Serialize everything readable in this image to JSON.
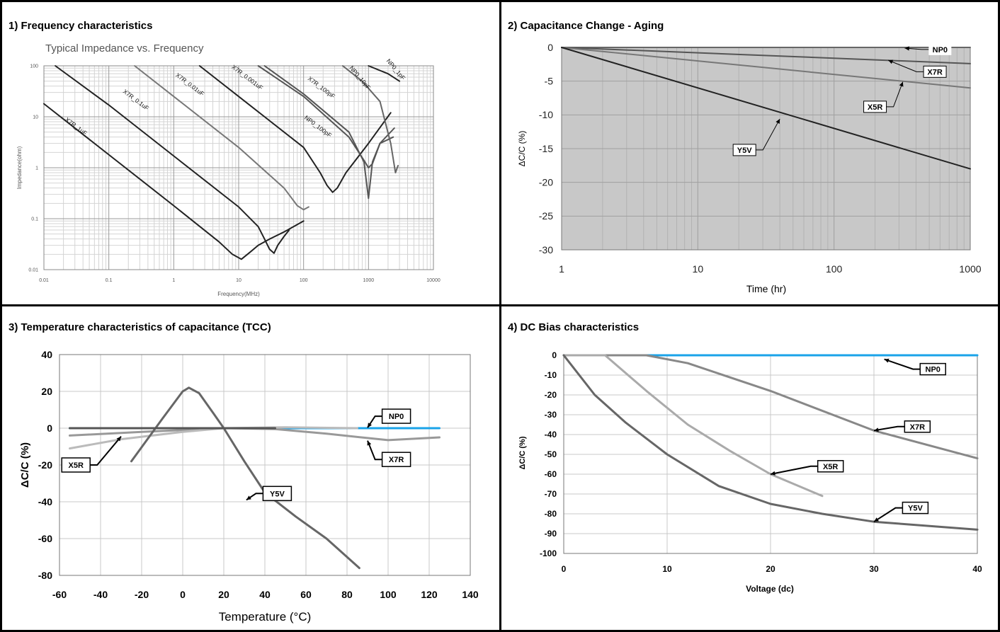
{
  "panels": {
    "p1": {
      "title": "1) Frequency characteristics"
    },
    "p2": {
      "title": "2) Capacitance Change - Aging"
    },
    "p3": {
      "title": "3) Temperature characteristics of capacitance (TCC)"
    },
    "p4": {
      "title": "4) DC Bias characteristics"
    }
  },
  "chart_data": [
    {
      "id": "freq",
      "type": "line",
      "title": "Typical Impedance vs. Frequency",
      "xlabel": "Frequency(MHz)",
      "ylabel": "Impedance(ohm)",
      "xscale": "log",
      "yscale": "log",
      "xlim": [
        0.01,
        10000
      ],
      "ylim": [
        0.01,
        100
      ],
      "xticks": [
        "0.01",
        "0.1",
        "1",
        "10",
        "100",
        "1000",
        "10000"
      ],
      "yticks": [
        "0.01",
        "0.1",
        "1",
        "10",
        "100"
      ],
      "grid": true,
      "series": [
        {
          "name": "X7R_1uF",
          "label_at": [
            0.03,
            6
          ],
          "label_angle": 37,
          "color": "#222222",
          "points": [
            [
              0.01,
              18
            ],
            [
              0.1,
              1.8
            ],
            [
              1,
              0.18
            ],
            [
              5,
              0.035
            ],
            [
              8,
              0.02
            ],
            [
              11,
              0.016
            ],
            [
              15,
              0.022
            ],
            [
              20,
              0.03
            ],
            [
              30,
              0.04
            ],
            [
              50,
              0.055
            ],
            [
              100,
              0.09
            ]
          ]
        },
        {
          "name": "X7R_0.1uF",
          "label_at": [
            0.25,
            20
          ],
          "label_angle": 37,
          "color": "#222222",
          "points": [
            [
              0.015,
              100
            ],
            [
              0.1,
              17
            ],
            [
              1,
              1.7
            ],
            [
              10,
              0.17
            ],
            [
              20,
              0.07
            ],
            [
              25,
              0.04
            ],
            [
              30,
              0.025
            ],
            [
              35,
              0.021
            ],
            [
              40,
              0.03
            ],
            [
              50,
              0.045
            ],
            [
              60,
              0.06
            ]
          ]
        },
        {
          "name": "X7R_0.01uF",
          "label_at": [
            1.7,
            40
          ],
          "label_angle": 37,
          "color": "#777777",
          "points": [
            [
              0.25,
              100
            ],
            [
              1,
              25
            ],
            [
              10,
              2.5
            ],
            [
              50,
              0.4
            ],
            [
              80,
              0.18
            ],
            [
              100,
              0.15
            ],
            [
              120,
              0.17
            ]
          ]
        },
        {
          "name": "X7R_0.001uF",
          "label_at": [
            13,
            55
          ],
          "label_angle": 37,
          "color": "#222222",
          "points": [
            [
              2.5,
              100
            ],
            [
              10,
              25
            ],
            [
              100,
              2.5
            ],
            [
              180,
              0.8
            ],
            [
              230,
              0.45
            ],
            [
              280,
              0.33
            ],
            [
              330,
              0.4
            ],
            [
              450,
              0.8
            ],
            [
              1000,
              3
            ],
            [
              2200,
              12
            ]
          ]
        },
        {
          "name": "X7R_100pF",
          "label_at": [
            180,
            35
          ],
          "label_angle": 37,
          "color": "#555555",
          "points": [
            [
              20,
              100
            ],
            [
              100,
              25
            ],
            [
              500,
              4
            ],
            [
              850,
              1.4
            ],
            [
              1000,
              1.0
            ],
            [
              1150,
              1.2
            ],
            [
              1500,
              3
            ],
            [
              2500,
              6
            ]
          ]
        },
        {
          "name": "NP0_100pF",
          "label_at": [
            160,
            6
          ],
          "label_angle": 37,
          "color": "#555555",
          "points": [
            [
              25,
              100
            ],
            [
              100,
              28
            ],
            [
              500,
              5
            ],
            [
              850,
              1.3
            ],
            [
              1000,
              0.25
            ],
            [
              1150,
              1.3
            ],
            [
              1500,
              3
            ],
            [
              2400,
              4
            ]
          ]
        },
        {
          "name": "NP0_10pF",
          "label_at": [
            700,
            55
          ],
          "label_angle": 50,
          "color": "#666666",
          "points": [
            [
              400,
              100
            ],
            [
              800,
              50
            ],
            [
              1500,
              20
            ],
            [
              2200,
              3
            ],
            [
              2600,
              0.8
            ],
            [
              2850,
              1.1
            ]
          ]
        },
        {
          "name": "NP0_1pF",
          "label_at": [
            2500,
            80
          ],
          "label_angle": 50,
          "color": "#222222",
          "points": [
            [
              1000,
              100
            ],
            [
              2000,
              70
            ],
            [
              3000,
              50
            ]
          ]
        }
      ]
    },
    {
      "id": "aging",
      "type": "line",
      "xlabel": "Time (hr)",
      "ylabel": "ΔC/C (%)",
      "xscale": "log",
      "xlim": [
        1,
        1000
      ],
      "ylim": [
        -30,
        0
      ],
      "xticks": [
        "1",
        "10",
        "100",
        "1000"
      ],
      "yticks": [
        "0",
        "-5",
        "-10",
        "-15",
        "-20",
        "-25",
        "-30"
      ],
      "grid": true,
      "series": [
        {
          "name": "NP0",
          "color": "#666666",
          "points": [
            [
              1,
              0
            ],
            [
              1000,
              0
            ]
          ]
        },
        {
          "name": "X7R",
          "color": "#555555",
          "points": [
            [
              1,
              0
            ],
            [
              1000,
              -2.4
            ]
          ]
        },
        {
          "name": "X5R",
          "color": "#777777",
          "points": [
            [
              1,
              0
            ],
            [
              1000,
              -6
            ]
          ]
        },
        {
          "name": "Y5V",
          "color": "#222222",
          "points": [
            [
              1,
              0
            ],
            [
              1000,
              -18
            ]
          ]
        }
      ],
      "annotations": [
        {
          "text": "NP0",
          "box": [
            600,
            -0.3
          ],
          "arrow_to": [
            330,
            -0.1
          ],
          "no_border": true
        },
        {
          "text": "X7R",
          "box": [
            550,
            -3.6
          ],
          "arrow_to": [
            250,
            -1.9
          ]
        },
        {
          "text": "X5R",
          "box": [
            200,
            -8.8
          ],
          "arrow_to": [
            320,
            -5.1
          ]
        },
        {
          "text": "Y5V",
          "box": [
            22,
            -15.2
          ],
          "arrow_to": [
            40,
            -10.6
          ]
        }
      ]
    },
    {
      "id": "tcc",
      "type": "line",
      "xlabel": "Temperature (°C)",
      "ylabel": "ΔC/C (%)",
      "xlim": [
        -60,
        140
      ],
      "ylim": [
        -80,
        40
      ],
      "xticks": [
        "-60",
        "-40",
        "-20",
        "0",
        "20",
        "40",
        "60",
        "80",
        "100",
        "120",
        "140"
      ],
      "yticks": [
        "40",
        "20",
        "0",
        "-20",
        "-40",
        "-60",
        "-80"
      ],
      "grid": true,
      "series": [
        {
          "name": "NP0",
          "color": "#1aa3e8",
          "points": [
            [
              -55,
              0
            ],
            [
              125,
              0
            ]
          ]
        },
        {
          "name": "X7R",
          "color": "#999999",
          "points": [
            [
              -55,
              -4
            ],
            [
              -20,
              -2
            ],
            [
              20,
              0
            ],
            [
              45,
              -0.5
            ],
            [
              70,
              -3
            ],
            [
              100,
              -6.5
            ],
            [
              125,
              -5
            ]
          ]
        },
        {
          "name": "X5R",
          "color": "#bbbbbb",
          "points": [
            [
              -55,
              -11
            ],
            [
              -30,
              -6
            ],
            [
              0,
              -2
            ],
            [
              20,
              0
            ],
            [
              50,
              0.5
            ],
            [
              85,
              0
            ]
          ]
        },
        {
          "name": "Y5V",
          "color": "#666666",
          "points": [
            [
              -25,
              -18
            ],
            [
              -10,
              5
            ],
            [
              0,
              20
            ],
            [
              3,
              22
            ],
            [
              8,
              19
            ],
            [
              15,
              8
            ],
            [
              20,
              0
            ],
            [
              30,
              -18
            ],
            [
              40,
              -35
            ],
            [
              55,
              -48
            ],
            [
              70,
              -60
            ],
            [
              86,
              -76
            ]
          ]
        },
        {
          "name": "",
          "color": "#555555",
          "points": [
            [
              -55,
              0
            ],
            [
              -20,
              0
            ],
            [
              20,
              0
            ],
            [
              45,
              0
            ]
          ]
        }
      ],
      "annotations": [
        {
          "text": "NP0",
          "box": [
            104,
            6.5
          ],
          "arrow_to": [
            90,
            0.3
          ]
        },
        {
          "text": "X7R",
          "box": [
            104,
            -17
          ],
          "arrow_to": [
            90,
            -6.8
          ]
        },
        {
          "text": "X5R",
          "box": [
            -52,
            -20
          ],
          "arrow_to": [
            -30,
            -4.5
          ]
        },
        {
          "text": "Y5V",
          "box": [
            46,
            -35.5
          ],
          "arrow_to": [
            31,
            -39
          ]
        }
      ]
    },
    {
      "id": "dcbias",
      "type": "line",
      "xlabel": "Voltage (dc)",
      "ylabel": "ΔC/C (%)",
      "xlim": [
        0,
        40
      ],
      "ylim": [
        -100,
        0
      ],
      "xticks": [
        "0",
        "10",
        "20",
        "30",
        "40"
      ],
      "yticks": [
        "0",
        "-10",
        "-20",
        "-30",
        "-40",
        "-50",
        "-60",
        "-70",
        "-80",
        "-90",
        "-100"
      ],
      "grid": true,
      "series": [
        {
          "name": "NP0",
          "color": "#1aa3e8",
          "points": [
            [
              0,
              0
            ],
            [
              40,
              0
            ]
          ]
        },
        {
          "name": "X7R",
          "color": "#888888",
          "points": [
            [
              0,
              0
            ],
            [
              8,
              0
            ],
            [
              12,
              -4
            ],
            [
              20,
              -18
            ],
            [
              30,
              -38
            ],
            [
              40,
              -52
            ]
          ]
        },
        {
          "name": "X5R",
          "color": "#aaaaaa",
          "points": [
            [
              0,
              0
            ],
            [
              4,
              0
            ],
            [
              8,
              -18
            ],
            [
              12,
              -35
            ],
            [
              16,
              -48
            ],
            [
              20,
              -60
            ],
            [
              25,
              -71
            ]
          ]
        },
        {
          "name": "Y5V",
          "color": "#666666",
          "points": [
            [
              0,
              0
            ],
            [
              3,
              -20
            ],
            [
              6,
              -34
            ],
            [
              10,
              -50
            ],
            [
              15,
              -66
            ],
            [
              20,
              -75
            ],
            [
              25,
              -80
            ],
            [
              30,
              -84
            ],
            [
              40,
              -88
            ]
          ]
        }
      ],
      "annotations": [
        {
          "text": "NP0",
          "box": [
            35.7,
            -7
          ],
          "arrow_to": [
            31,
            -2
          ]
        },
        {
          "text": "X7R",
          "box": [
            34.2,
            -36
          ],
          "arrow_to": [
            30,
            -38
          ]
        },
        {
          "text": "X5R",
          "box": [
            25.8,
            -56
          ],
          "arrow_to": [
            20,
            -60
          ]
        },
        {
          "text": "Y5V",
          "box": [
            34,
            -77
          ],
          "arrow_to": [
            30,
            -84
          ]
        }
      ]
    }
  ]
}
